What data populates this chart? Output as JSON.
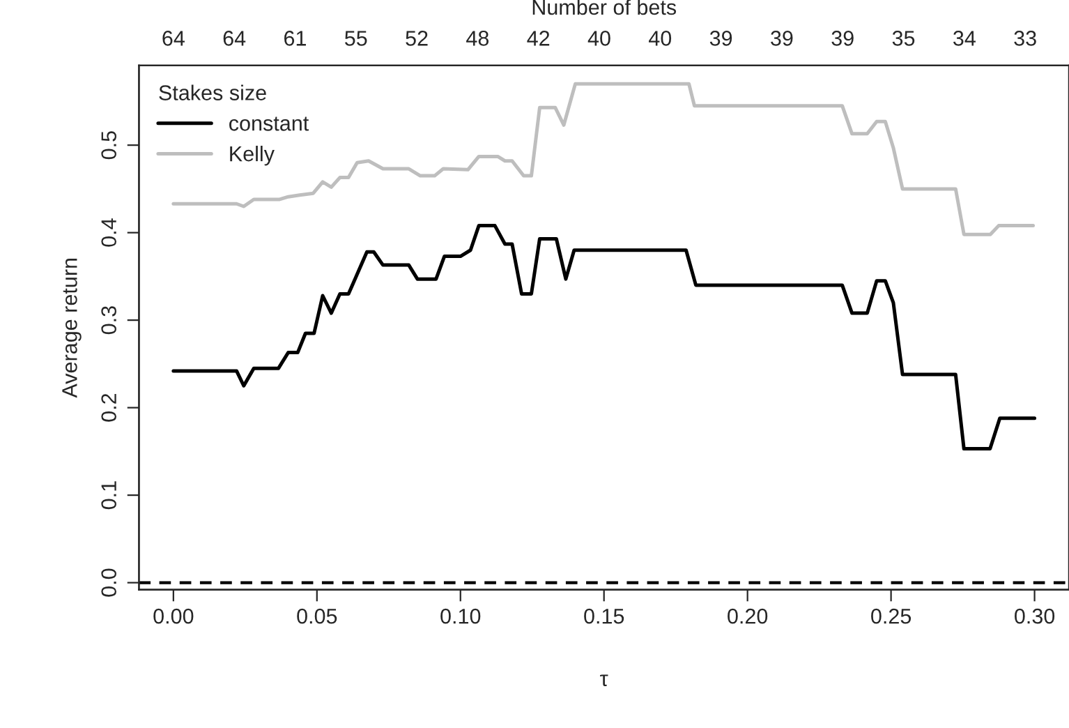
{
  "chart_data": {
    "type": "line",
    "xlabel": "τ",
    "ylabel": "Average return",
    "x2label": "Number of bets",
    "legend_title": "Stakes size",
    "legend": "top left",
    "grid": false,
    "marker": "none",
    "line_style": "solid",
    "xlim": [
      -0.012,
      0.312
    ],
    "xticks": [
      {
        "value": 0,
        "label": "0.00"
      },
      {
        "value": 0.05,
        "label": "0.05"
      },
      {
        "value": 0.1,
        "label": "0.10"
      },
      {
        "value": 0.15,
        "label": "0.15"
      },
      {
        "value": 0.2,
        "label": "0.20"
      },
      {
        "value": 0.25,
        "label": "0.25"
      },
      {
        "value": 0.3,
        "label": "0.30"
      }
    ],
    "annotations": [
      "64",
      "64",
      "61",
      "55",
      "52",
      "48",
      "42",
      "40",
      "40",
      "39",
      "39",
      "39",
      "35",
      "34",
      "33"
    ],
    "ylim": [
      -0.008,
      0.591
    ],
    "yticks": [
      {
        "value": 0,
        "label": "0.0"
      },
      {
        "value": 0.1,
        "label": "0.1"
      },
      {
        "value": 0.2,
        "label": "0.2"
      },
      {
        "value": 0.3,
        "label": "0.3"
      },
      {
        "value": 0.4,
        "label": "0.4"
      },
      {
        "value": 0.5,
        "label": "0.5"
      }
    ],
    "ref_lines": [
      {
        "axis": "y",
        "value": 0,
        "color": "#000000",
        "line_style": "dashed"
      }
    ],
    "series": [
      {
        "name": "constant",
        "color": "#000000",
        "x": [
          0,
          0.022,
          0.0245,
          0.028,
          0.0366,
          0.04,
          0.0433,
          0.046,
          0.049,
          0.052,
          0.055,
          0.058,
          0.061,
          0.0674,
          0.0698,
          0.073,
          0.082,
          0.085,
          0.0915,
          0.0944,
          0.1,
          0.1035,
          0.1064,
          0.112,
          0.1155,
          0.118,
          0.1213,
          0.1247,
          0.1276,
          0.1334,
          0.1367,
          0.1396,
          0.1786,
          0.182,
          0.233,
          0.2364,
          0.2417,
          0.245,
          0.248,
          0.2508,
          0.254,
          0.2725,
          0.2754,
          0.2845,
          0.2879,
          0.3
        ],
        "values": [
          0.242,
          0.242,
          0.225,
          0.245,
          0.245,
          0.263,
          0.263,
          0.285,
          0.285,
          0.328,
          0.308,
          0.33,
          0.33,
          0.378,
          0.378,
          0.363,
          0.363,
          0.347,
          0.347,
          0.373,
          0.373,
          0.38,
          0.408,
          0.408,
          0.387,
          0.387,
          0.33,
          0.33,
          0.393,
          0.393,
          0.347,
          0.38,
          0.38,
          0.34,
          0.34,
          0.308,
          0.308,
          0.345,
          0.345,
          0.32,
          0.238,
          0.238,
          0.153,
          0.153,
          0.188,
          0.188
        ]
      },
      {
        "name": "Kelly",
        "color": "#bebebe",
        "x": [
          0,
          0.022,
          0.0245,
          0.028,
          0.037,
          0.04,
          0.044,
          0.0487,
          0.052,
          0.055,
          0.058,
          0.061,
          0.064,
          0.068,
          0.073,
          0.082,
          0.086,
          0.091,
          0.094,
          0.1026,
          0.1064,
          0.113,
          0.1155,
          0.118,
          0.122,
          0.1247,
          0.1276,
          0.133,
          0.136,
          0.14,
          0.1796,
          0.1815,
          0.233,
          0.2364,
          0.2417,
          0.245,
          0.248,
          0.2508,
          0.254,
          0.2725,
          0.2754,
          0.2846,
          0.2875,
          0.2995
        ],
        "values": [
          0.433,
          0.433,
          0.43,
          0.438,
          0.438,
          0.441,
          0.443,
          0.445,
          0.458,
          0.452,
          0.463,
          0.463,
          0.48,
          0.482,
          0.473,
          0.473,
          0.465,
          0.465,
          0.473,
          0.472,
          0.487,
          0.487,
          0.482,
          0.482,
          0.465,
          0.465,
          0.543,
          0.543,
          0.523,
          0.57,
          0.57,
          0.545,
          0.545,
          0.513,
          0.513,
          0.527,
          0.527,
          0.497,
          0.45,
          0.45,
          0.398,
          0.398,
          0.408,
          0.408
        ]
      }
    ]
  }
}
